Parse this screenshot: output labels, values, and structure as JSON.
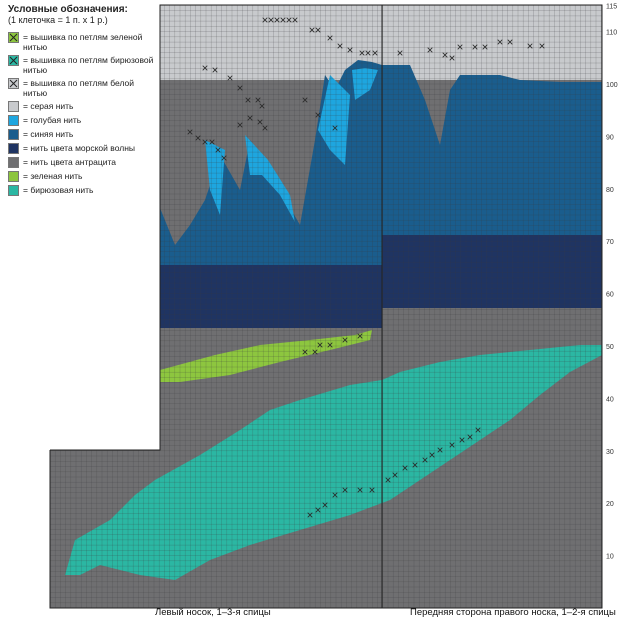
{
  "legend": {
    "title": "Условные обозначения:",
    "subtitle": "(1 клеточка = 1 п. х 1 р.)",
    "items": [
      {
        "key": "green_stitch",
        "label": "= вышивка по петлям зеленой нитью",
        "color": "#8dc63f",
        "icon": "x-mark-icon"
      },
      {
        "key": "turq_stitch",
        "label": "= вышивка по петлям бирюзовой нитью",
        "color": "#2bb7a3",
        "icon": "x-mark-icon"
      },
      {
        "key": "white_stitch",
        "label": "= вышивка по петлям белой нитью",
        "color": "#c8cacd",
        "icon": "x-mark-icon"
      },
      {
        "key": "gray",
        "label": "= серая нить",
        "color": "#c8cacd"
      },
      {
        "key": "light_blue",
        "label": "= голубая нить",
        "color": "#1ea6df"
      },
      {
        "key": "blue",
        "label": "= синяя нить",
        "color": "#1a5d8d"
      },
      {
        "key": "navy",
        "label": "= нить цвета морской волны",
        "color": "#1f3462"
      },
      {
        "key": "anthracite",
        "label": "= нить цвета антрацита",
        "color": "#6f6f71"
      },
      {
        "key": "green",
        "label": "= зеленая нить",
        "color": "#8dc63f"
      },
      {
        "key": "turquoise",
        "label": "= бирюзовая нить",
        "color": "#2bb7a3"
      }
    ]
  },
  "chart": {
    "row_ticks": [
      "10",
      "20",
      "30",
      "40",
      "50",
      "60",
      "70",
      "80",
      "90",
      "100",
      "110",
      "115"
    ],
    "left_caption": "Левый носок, 1–3-я спицы",
    "right_caption": "Передняя сторона правого носка, 1–2-я спицы"
  },
  "colors": {
    "grid_line": "#3d3d3f",
    "x_mark": "#2a2a2a"
  }
}
